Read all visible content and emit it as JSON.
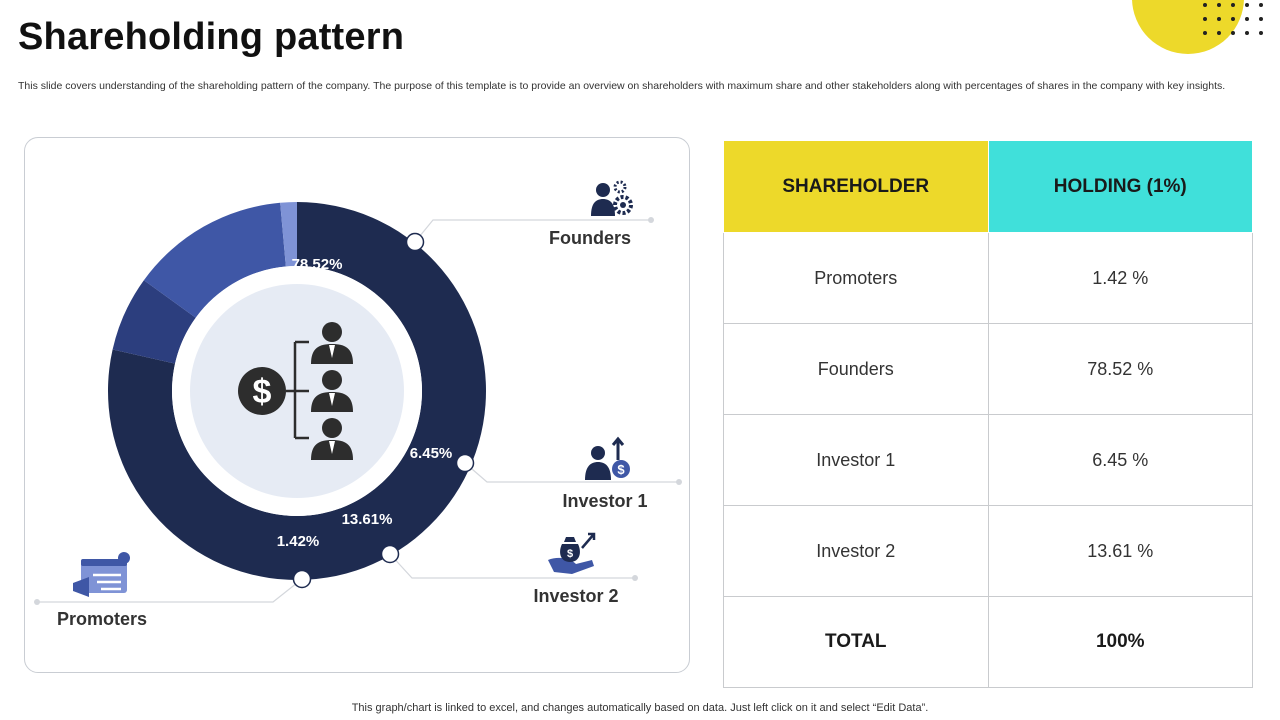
{
  "header": {
    "title": "Shareholding pattern",
    "subtitle": "This slide covers understanding of the shareholding pattern of the company. The purpose of this template is to provide an overview on shareholders with maximum share and other stakeholders along with percentages of shares in the company with key insights."
  },
  "colors": {
    "accent_yellow": "#EDD92A",
    "accent_cyan": "#40E0DA",
    "navy": "#1E2B50",
    "blue_mid": "#2C3E7E",
    "blue_bright": "#3F57A6",
    "blue_light": "#7F93D6",
    "center_fill": "#E6EBF4",
    "icon_dark": "#2D2D2D"
  },
  "chart_data": {
    "type": "pie",
    "variant": "donut",
    "unit": "%",
    "slices": [
      {
        "name": "Founders",
        "value": 78.52,
        "label": "78.52%",
        "color": "#1E2B50",
        "icon": "team-gear-icon"
      },
      {
        "name": "Investor 1",
        "value": 6.45,
        "label": "6.45%",
        "color": "#2C3E7E",
        "icon": "investor-dollar-growth-icon"
      },
      {
        "name": "Investor 2",
        "value": 13.61,
        "label": "13.61%",
        "color": "#3F57A6",
        "icon": "hand-money-bag-icon"
      },
      {
        "name": "Promoters",
        "value": 1.42,
        "label": "1.42%",
        "color": "#7F93D6",
        "icon": "promotion-megaphone-icon"
      }
    ],
    "center_icon": "dollar-org-chart-icon"
  },
  "table": {
    "headers": [
      "SHAREHOLDER",
      "HOLDING  (1%)"
    ],
    "rows": [
      [
        "Promoters",
        "1.42 %"
      ],
      [
        "Founders",
        "78.52 %"
      ],
      [
        "Investor 1",
        "6.45 %"
      ],
      [
        "Investor 2",
        "13.61 %"
      ]
    ],
    "total": [
      "TOTAL",
      "100%"
    ]
  },
  "footer": {
    "note": "This graph/chart is linked to excel,  and changes automatically based on data. Just left click on it and select “Edit Data”."
  }
}
